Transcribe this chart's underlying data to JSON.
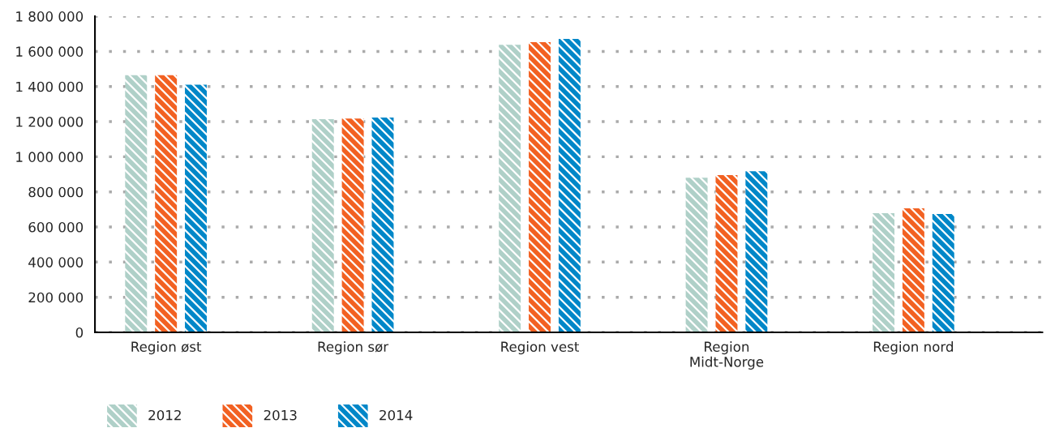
{
  "chart_data": {
    "type": "bar",
    "categories": [
      "Region øst",
      "Region sør",
      "Region vest",
      "Region\nMidt-Norge",
      "Region nord"
    ],
    "series": [
      {
        "name": "2012",
        "color": "#afd0c8",
        "values": [
          1465000,
          1214000,
          1638000,
          880000,
          678000
        ]
      },
      {
        "name": "2013",
        "color": "#f26122",
        "values": [
          1465000,
          1218000,
          1652000,
          895000,
          706000
        ]
      },
      {
        "name": "2014",
        "color": "#0087c8",
        "values": [
          1410000,
          1223000,
          1671000,
          918000,
          674000
        ]
      }
    ],
    "ylim": [
      0,
      1800000
    ],
    "yticks": [
      0,
      {
        "value": 200000,
        "label": "200 000"
      },
      {
        "value": 400000,
        "label": "400 000"
      },
      {
        "value": 600000,
        "label": "600 000"
      },
      {
        "value": 800000,
        "label": "800 000"
      },
      {
        "value": 1000000,
        "label": "1 000 000"
      },
      {
        "value": 1200000,
        "label": "1 200 000"
      },
      {
        "value": 1400000,
        "label": "1 400 000"
      },
      {
        "value": 1600000,
        "label": "1 600 000"
      },
      {
        "value": 1800000,
        "label": "1 800 000"
      }
    ],
    "grid": "y",
    "legend": "bottom left"
  }
}
